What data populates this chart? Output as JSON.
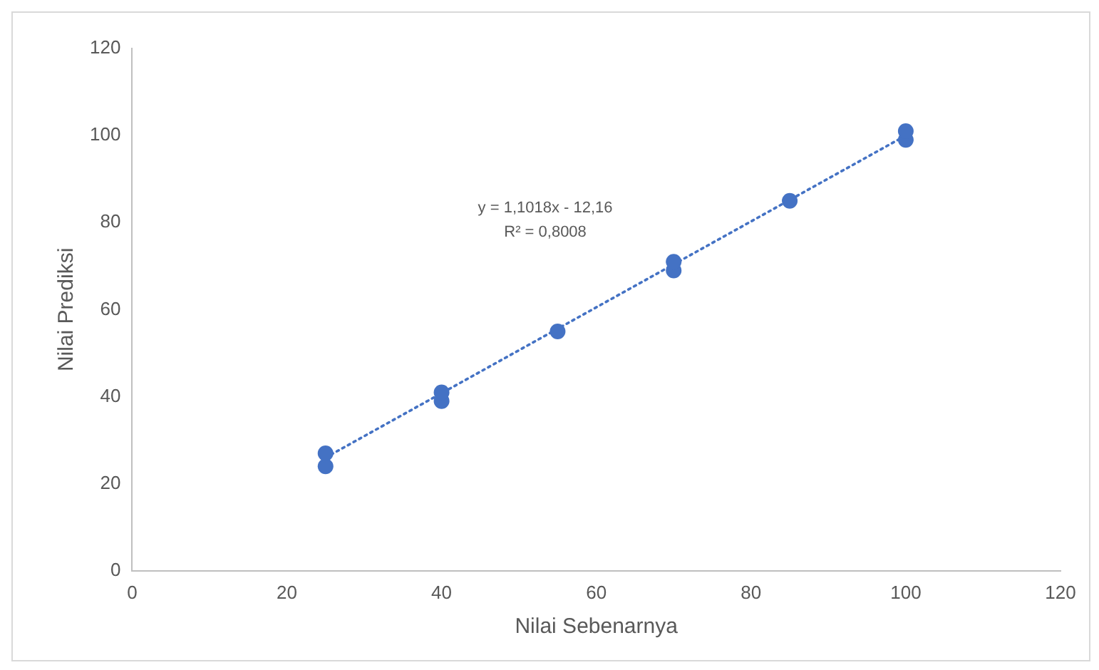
{
  "chart_data": {
    "type": "scatter",
    "xlabel": "Nilai Sebenarnya",
    "ylabel": "Nilai Prediksi",
    "annotations": [
      "y = 1,1018x - 12,16",
      "R² = 0,8008"
    ],
    "xlim": [
      0,
      120
    ],
    "xticks": [
      0,
      20,
      40,
      60,
      80,
      100,
      120
    ],
    "ylim": [
      0,
      120
    ],
    "yticks": [
      0,
      20,
      40,
      60,
      80,
      100,
      120
    ],
    "grid": false,
    "legend": false,
    "marker": "circle",
    "series": [
      {
        "color": "#4472c4",
        "x": [
          25,
          25,
          40,
          40,
          55,
          70,
          70,
          85,
          100,
          100
        ],
        "values": [
          24,
          27,
          39,
          41,
          55,
          69,
          71,
          85,
          99,
          101
        ]
      },
      {
        "type": "line",
        "color": "#4472c4",
        "line_style": "dotted",
        "marker": "none",
        "x": [
          25,
          100
        ],
        "values": [
          26,
          100
        ]
      }
    ]
  }
}
